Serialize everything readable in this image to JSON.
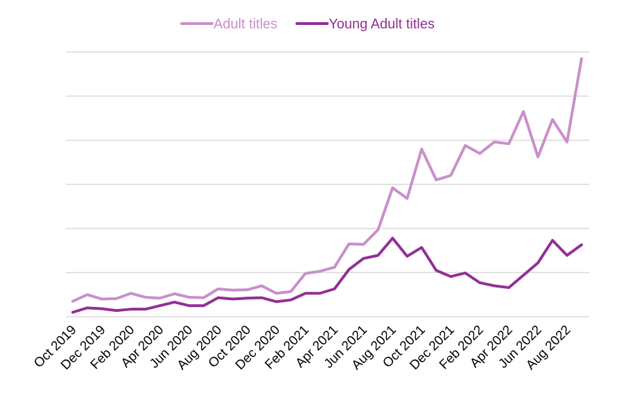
{
  "chart_data": {
    "type": "line",
    "x": [
      "Oct 2019",
      "Nov 2019",
      "Dec 2019",
      "Jan 2020",
      "Feb 2020",
      "Mar 2020",
      "Apr 2020",
      "May 2020",
      "Jun 2020",
      "Jul 2020",
      "Aug 2020",
      "Sep 2020",
      "Oct 2020",
      "Nov 2020",
      "Dec 2020",
      "Jan 2021",
      "Feb 2021",
      "Mar 2021",
      "Apr 2021",
      "May 2021",
      "Jun 2021",
      "Jul 2021",
      "Aug 2021",
      "Sep 2021",
      "Oct 2021",
      "Nov 2021",
      "Dec 2021",
      "Jan 2022",
      "Feb 2022",
      "Mar 2022",
      "Apr 2022",
      "May 2022",
      "Jun 2022",
      "Jul 2022",
      "Aug 2022",
      "Sep 2022"
    ],
    "tick_labels": [
      "Oct 2019",
      "Dec 2019",
      "Feb 2020",
      "Apr 2020",
      "Jun 2020",
      "Aug 2020",
      "Oct 2020",
      "Dec 2020",
      "Feb 2021",
      "Apr 2021",
      "Jun 2021",
      "Aug 2021",
      "Oct 2021",
      "Dec 2021",
      "Feb 2022",
      "Apr 2022",
      "Jun 2022",
      "Aug 2022"
    ],
    "series": [
      {
        "name": "Adult titles",
        "color": "#c88fca",
        "values": [
          0.35,
          0.5,
          0.4,
          0.41,
          0.53,
          0.44,
          0.42,
          0.52,
          0.44,
          0.43,
          0.63,
          0.6,
          0.61,
          0.7,
          0.53,
          0.57,
          0.98,
          1.03,
          1.12,
          1.65,
          1.64,
          1.97,
          2.92,
          2.68,
          3.8,
          3.1,
          3.2,
          3.88,
          3.7,
          3.96,
          3.92,
          4.65,
          3.62,
          4.47,
          3.96,
          5.85
        ]
      },
      {
        "name": "Young Adult titles",
        "color": "#922f97",
        "values": [
          0.1,
          0.2,
          0.18,
          0.14,
          0.17,
          0.17,
          0.25,
          0.33,
          0.25,
          0.25,
          0.43,
          0.4,
          0.42,
          0.43,
          0.34,
          0.38,
          0.53,
          0.53,
          0.63,
          1.07,
          1.32,
          1.39,
          1.78,
          1.37,
          1.57,
          1.05,
          0.91,
          0.99,
          0.77,
          0.7,
          0.66,
          0.94,
          1.22,
          1.73,
          1.39,
          1.63
        ]
      }
    ],
    "ylim": [
      0,
      6
    ],
    "yticks": [
      0,
      1,
      2,
      3,
      4,
      5,
      6
    ],
    "y_tick_labels_shown": false,
    "grid": true,
    "legend_position": "top-center",
    "title": "",
    "xlabel": "",
    "ylabel": ""
  }
}
